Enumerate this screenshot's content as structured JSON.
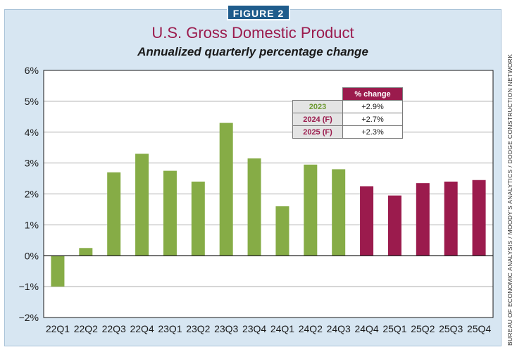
{
  "badge": "FIGURE 2",
  "title": "U.S. Gross Domestic Product",
  "subtitle": "Annualized quarterly percentage change",
  "source": "BUREAU OF ECONOMIC ANALYSIS / MOODY'S ANALYTICS / DODGE CONSTRUCTION NETWORK",
  "colors": {
    "actual": "#86ac46",
    "forecast": "#9b1b4d"
  },
  "legend": {
    "header": "% change",
    "rows": [
      {
        "label": "2023",
        "value": "+2.9%",
        "color": "#6e9a32"
      },
      {
        "label": "2024 (F)",
        "value": "+2.7%",
        "color": "#9b1b4d"
      },
      {
        "label": "2025 (F)",
        "value": "+2.3%",
        "color": "#9b1b4d"
      }
    ]
  },
  "chart_data": {
    "type": "bar",
    "title": "U.S. Gross Domestic Product",
    "subtitle": "Annualized quarterly percentage change",
    "xlabel": "",
    "ylabel": "",
    "ylim": [
      -2,
      6
    ],
    "yticks": [
      6,
      5,
      4,
      3,
      2,
      1,
      0,
      -1,
      -2
    ],
    "ytick_labels": [
      "6%",
      "5%",
      "4%",
      "3%",
      "2%",
      "1%",
      "0%",
      "−1%",
      "−2%"
    ],
    "grid": true,
    "categories": [
      "22Q1",
      "22Q2",
      "22Q3",
      "22Q4",
      "23Q1",
      "23Q2",
      "23Q3",
      "23Q4",
      "24Q1",
      "24Q2",
      "24Q3",
      "24Q4",
      "25Q1",
      "25Q2",
      "25Q3",
      "25Q4"
    ],
    "values": [
      -1.0,
      0.25,
      2.7,
      3.3,
      2.75,
      2.4,
      4.3,
      3.15,
      1.6,
      2.95,
      2.8,
      2.25,
      1.95,
      2.35,
      2.4,
      2.45
    ],
    "forecast": [
      false,
      false,
      false,
      false,
      false,
      false,
      false,
      false,
      false,
      false,
      false,
      true,
      true,
      true,
      true,
      true
    ]
  }
}
